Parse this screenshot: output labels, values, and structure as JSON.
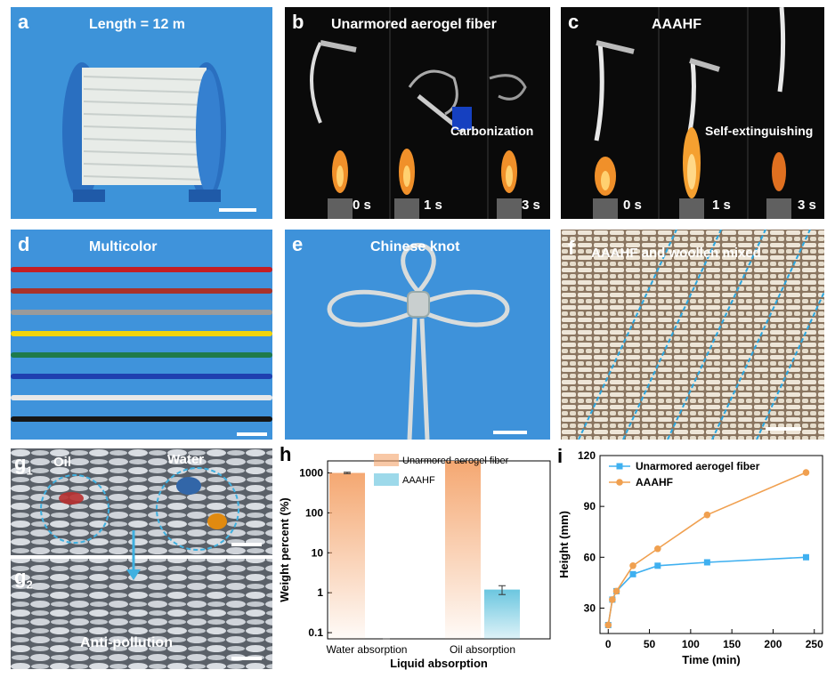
{
  "panels": {
    "a": {
      "label": "a",
      "title": "Length = 12 m"
    },
    "b": {
      "label": "b",
      "title": "Unarmored aerogel fiber",
      "note": "Carbonization",
      "times": [
        "0 s",
        "1 s",
        "3 s"
      ]
    },
    "c": {
      "label": "c",
      "title": "AAAHF",
      "note": "Self-extinguishing",
      "times": [
        "0 s",
        "1 s",
        "3 s"
      ]
    },
    "d": {
      "label": "d",
      "title": "Multicolor",
      "fiber_colors": [
        "#c41e24",
        "#a8322a",
        "#9a9a9a",
        "#f2d40a",
        "#1f7a4a",
        "#1f3fb0",
        "#e8e8e8",
        "#161616"
      ]
    },
    "e": {
      "label": "e",
      "title": "Chinese knot"
    },
    "f": {
      "label": "f",
      "title": "AAAHF and woollen mixed"
    },
    "g": {
      "label1": "g",
      "sub1": "1",
      "label2": "g",
      "sub2": "2",
      "oil": "Oil",
      "water": "Water",
      "bottom": "Anti-pollution"
    },
    "colors": {
      "unarmored": "#f4a36a",
      "aaahf": "#5bc0dc",
      "i_unarmored": "#3fb0f0",
      "i_aaahf": "#f0a050"
    }
  },
  "chart_data": [
    {
      "type": "bar",
      "panel_label": "h",
      "categories": [
        "Water absorption",
        "Oil absorption"
      ],
      "series": [
        {
          "name": "Unarmored aerogel fiber",
          "values": [
            1000,
            2000
          ]
        },
        {
          "name": "AAAHF",
          "values": [
            0.065,
            1.2
          ]
        }
      ],
      "error": {
        "AAAHF": [
          0.005,
          0.3
        ],
        "Unarmored aerogel fiber": [
          40,
          60
        ]
      },
      "xlabel": "Liquid absorption",
      "ylabel": "Weight percent (%)",
      "yscale": "log",
      "ylim": [
        0.07,
        2000
      ],
      "yticks": [
        "0.1",
        "1",
        "10",
        "100",
        "1000"
      ],
      "legend": "top"
    },
    {
      "type": "line",
      "panel_label": "i",
      "series": [
        {
          "name": "Unarmored aerogel fiber",
          "x": [
            0,
            5,
            10,
            30,
            60,
            120,
            240
          ],
          "y": [
            20,
            35,
            40,
            50,
            55,
            57,
            60
          ]
        },
        {
          "name": "AAAHF",
          "x": [
            0,
            5,
            10,
            30,
            60,
            120,
            240
          ],
          "y": [
            20,
            35,
            40,
            55,
            65,
            85,
            110
          ]
        }
      ],
      "xlabel": "Time (min)",
      "ylabel": "Height (mm)",
      "xlim": [
        -10,
        260
      ],
      "ylim": [
        15,
        120
      ],
      "xticks": [
        "0",
        "50",
        "100",
        "150",
        "200",
        "250"
      ],
      "yticks": [
        "30",
        "60",
        "90",
        "120"
      ],
      "legend": "top-left"
    }
  ]
}
